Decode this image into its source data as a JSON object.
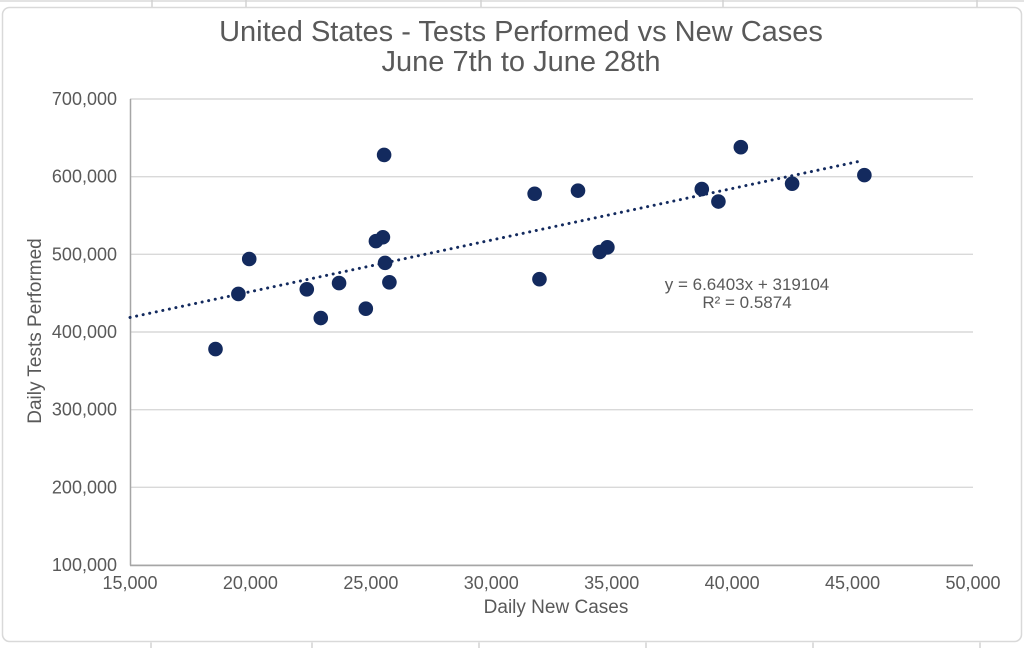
{
  "chart_data": {
    "type": "scatter",
    "title": "United States - Tests Performed vs New Cases",
    "subtitle": "June 7th to June 28th",
    "xlabel": "Daily New Cases",
    "ylabel": "Daily Tests Performed",
    "xlim": [
      15000,
      50000
    ],
    "ylim": [
      100000,
      700000
    ],
    "x_ticks": [
      15000,
      20000,
      25000,
      30000,
      35000,
      40000,
      45000,
      50000
    ],
    "x_tick_labels": [
      "15,000",
      "20,000",
      "25,000",
      "30,000",
      "35,000",
      "40,000",
      "45,000",
      "50,000"
    ],
    "y_ticks": [
      100000,
      200000,
      300000,
      400000,
      500000,
      600000,
      700000
    ],
    "y_tick_labels": [
      "100,000",
      "200,000",
      "300,000",
      "400,000",
      "500,000",
      "600,000",
      "700,000"
    ],
    "grid": "horizontal",
    "legend": "none",
    "points": [
      {
        "x": 18550,
        "y": 378000
      },
      {
        "x": 19500,
        "y": 449000
      },
      {
        "x": 19950,
        "y": 494000
      },
      {
        "x": 22340,
        "y": 455000
      },
      {
        "x": 22920,
        "y": 418000
      },
      {
        "x": 23680,
        "y": 463000
      },
      {
        "x": 24790,
        "y": 430000
      },
      {
        "x": 25210,
        "y": 517000
      },
      {
        "x": 25500,
        "y": 522000
      },
      {
        "x": 25550,
        "y": 628000
      },
      {
        "x": 25590,
        "y": 489000
      },
      {
        "x": 25770,
        "y": 464000
      },
      {
        "x": 31800,
        "y": 578000
      },
      {
        "x": 32000,
        "y": 468000
      },
      {
        "x": 33600,
        "y": 582000
      },
      {
        "x": 34500,
        "y": 503000
      },
      {
        "x": 34820,
        "y": 509000
      },
      {
        "x": 38740,
        "y": 584000
      },
      {
        "x": 39430,
        "y": 568000
      },
      {
        "x": 40360,
        "y": 638000
      },
      {
        "x": 42490,
        "y": 591000
      },
      {
        "x": 45490,
        "y": 602000
      }
    ],
    "trendline": {
      "style": "dotted",
      "slope": 6.6403,
      "intercept": 319104,
      "x_start": 15000,
      "x_end": 45300,
      "equation_label": "y = 6.6403x + 319104",
      "r2_label": "R² = 0.5874"
    },
    "colors": {
      "marker": "#132a5e",
      "trendline": "#132a5e",
      "text": "#595959",
      "gridline": "#d9d9d9",
      "axis_line": "#a6a6a6",
      "chart_border": "#d9d9d9",
      "sheet_line": "#e0e0e0"
    }
  }
}
